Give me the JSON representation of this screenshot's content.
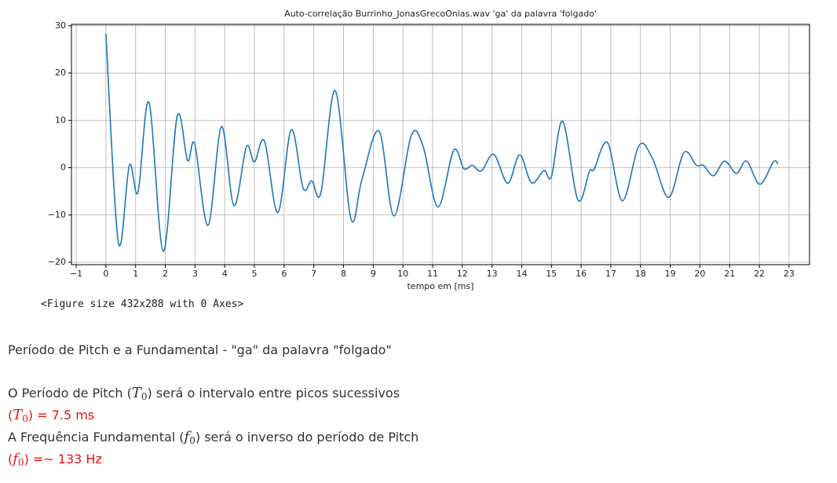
{
  "chart_data": {
    "type": "line",
    "title": "Auto-correlação Burrinho_JonasGrecoOnias.wav 'ga' da palavra 'folgado'",
    "xlabel": "tempo em [ms]",
    "x": [
      0,
      0.42,
      0.79,
      1.08,
      1.45,
      1.93,
      2.4,
      2.75,
      2.99,
      3.44,
      3.89,
      4.31,
      4.73,
      5.0,
      5.34,
      5.79,
      6.24,
      6.64,
      6.93,
      7.24,
      7.72,
      8.25,
      8.62,
      9.2,
      9.7,
      10.28,
      10.68,
      11.18,
      11.71,
      12.05,
      12.34,
      12.64,
      13.06,
      13.53,
      13.93,
      14.33,
      14.75,
      15.0,
      15.38,
      15.89,
      16.28,
      16.44,
      16.89,
      17.39,
      17.95,
      18.4,
      18.95,
      19.46,
      19.88,
      20.12,
      20.46,
      20.83,
      21.23,
      21.57,
      22.02,
      22.47,
      22.63
    ],
    "series": [
      {
        "color": "#1f77b4",
        "values": [
          28.3,
          -15.8,
          0.5,
          -5.2,
          13.8,
          -17.7,
          10.9,
          1.5,
          5.0,
          -12.2,
          8.7,
          -8.0,
          4.4,
          1.2,
          5.6,
          -9.5,
          8.0,
          -4.3,
          -2.8,
          -5.3,
          16.3,
          -10.8,
          -2.5,
          7.7,
          -10.2,
          6.8,
          4.5,
          -8.3,
          3.7,
          -0.2,
          0.5,
          -0.7,
          2.8,
          -3.3,
          2.7,
          -3.2,
          -0.6,
          -1.9,
          9.8,
          -6.8,
          -0.8,
          -0.3,
          5.3,
          -7.0,
          4.7,
          2.0,
          -6.3,
          3.2,
          0.5,
          0.5,
          -1.7,
          1.4,
          -1.2,
          1.4,
          -3.5,
          1.2,
          0.8
        ]
      }
    ],
    "xlim": [
      -1.16,
      23.69
    ],
    "ylim": [
      -20.5,
      30.3
    ],
    "xticks": [
      {
        "value": -1,
        "label": "−1"
      },
      0,
      1,
      2,
      3,
      4,
      5,
      6,
      7,
      8,
      9,
      10,
      11,
      12,
      13,
      14,
      15,
      16,
      17,
      18,
      19,
      20,
      21,
      22,
      23
    ],
    "yticks": [
      {
        "value": -20,
        "label": "−20"
      },
      {
        "value": -10,
        "label": "−10"
      },
      0,
      10,
      20,
      30
    ],
    "grid": true
  },
  "output": "<Figure size 432x288 with 0 Axes>",
  "markdown": {
    "heading": "Período de Pitch e a Fundamental - \"ga\" da palavra \"folgado\"",
    "lines": [
      {
        "before": "O Período de Pitch (",
        "symbol": "T",
        "sub": "0",
        "after": ") será o intervalo entre picos sucessivos"
      },
      {
        "before": "(",
        "symbol": "T",
        "sub": "0",
        "after": ") = 7.5 ms"
      },
      {
        "before": "A Frequência Fundamental (",
        "symbol": "f",
        "sub": "0",
        "after": ") será o inverso do período de Pitch"
      },
      {
        "before": "(",
        "symbol": "f",
        "sub": "0",
        "after": ") =~ 133 Hz"
      }
    ]
  }
}
